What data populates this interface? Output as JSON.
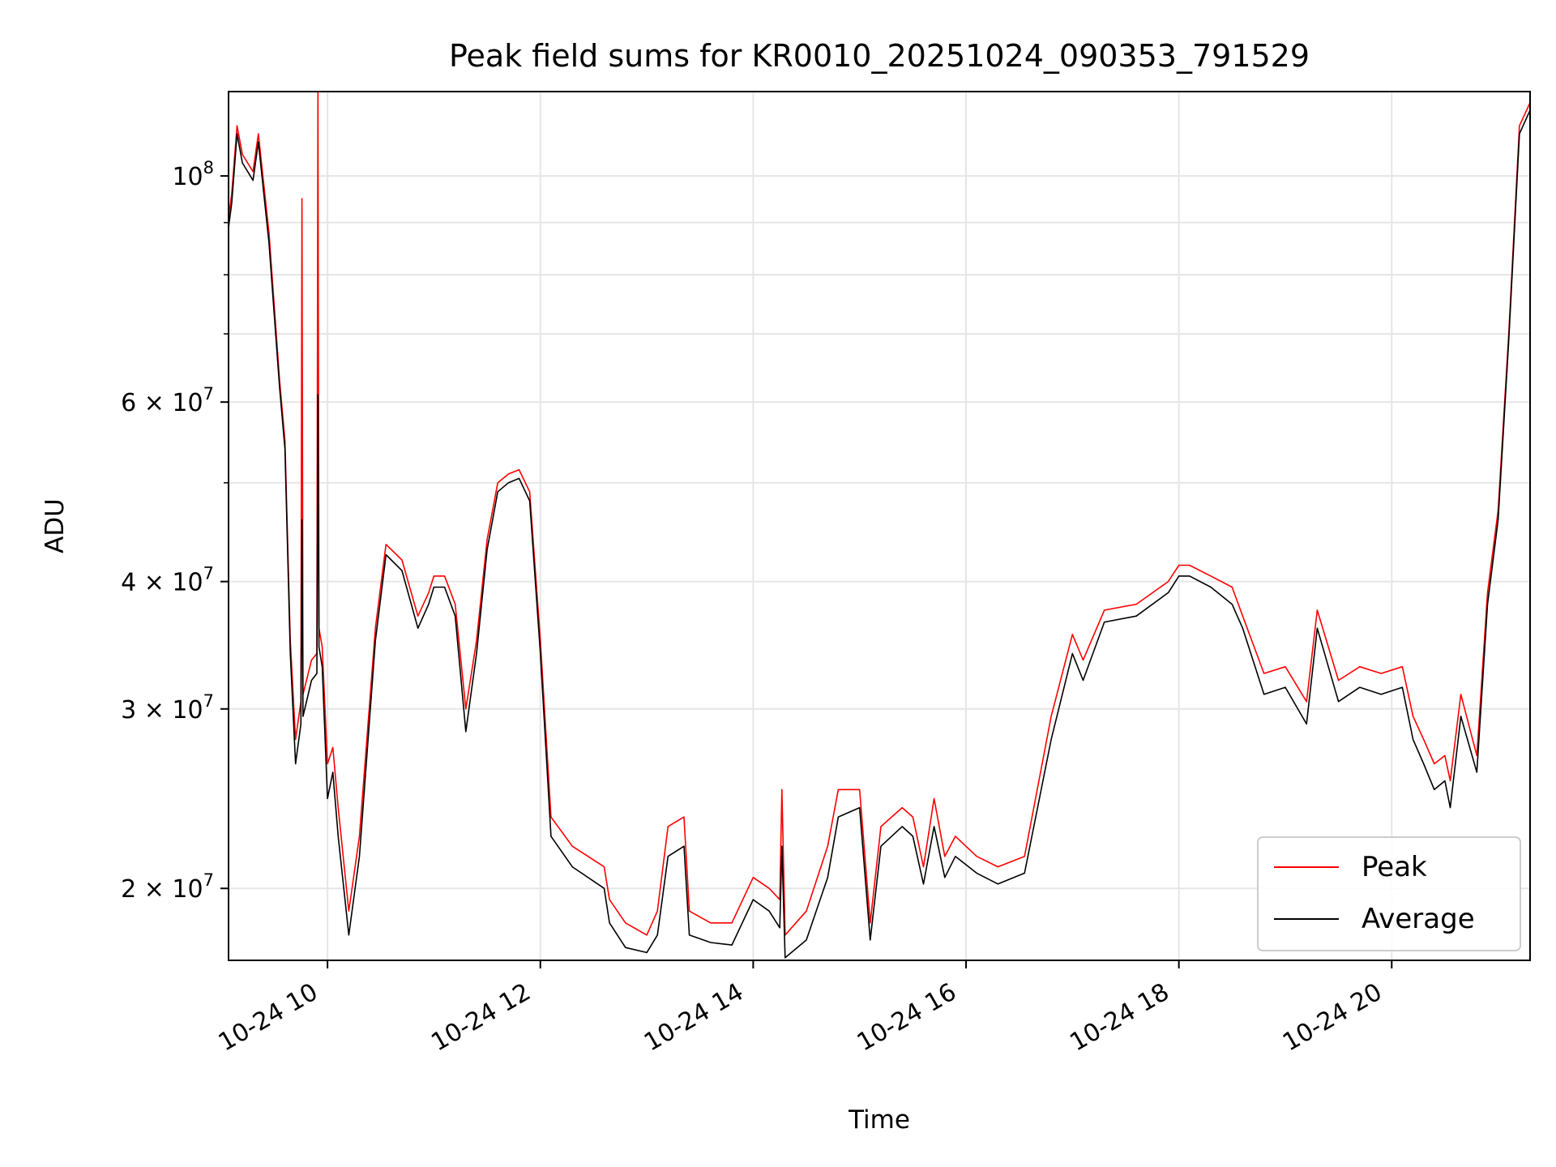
{
  "chart_data": {
    "type": "line",
    "title": "Peak field sums for KR0010_20251024_090353_791529",
    "xlabel": "Time",
    "ylabel": "ADU",
    "yscale": "log",
    "xlim": [
      9.07,
      21.3
    ],
    "ylim": [
      17000000,
      121000000
    ],
    "grid": true,
    "legend_position": "lower right",
    "x_ticks": [
      {
        "value": 10,
        "label": "10-24 10"
      },
      {
        "value": 12,
        "label": "10-24 12"
      },
      {
        "value": 14,
        "label": "10-24 14"
      },
      {
        "value": 16,
        "label": "10-24 16"
      },
      {
        "value": 18,
        "label": "10-24 18"
      },
      {
        "value": 20,
        "label": "10-24 20"
      }
    ],
    "y_major_ticks": [
      {
        "value": 100000000,
        "base": "10",
        "exp": "8"
      },
      {
        "value": 60000000,
        "base": "6 × 10",
        "exp": "7"
      },
      {
        "value": 40000000,
        "base": "4 × 10",
        "exp": "7"
      },
      {
        "value": 30000000,
        "base": "3 × 10",
        "exp": "7"
      },
      {
        "value": 20000000,
        "base": "2 × 10",
        "exp": "7"
      }
    ],
    "y_minor_grid": [
      50000000,
      70000000,
      80000000,
      90000000
    ],
    "series": [
      {
        "name": "Peak",
        "color": "#ff0000",
        "x": [
          9.07,
          9.1,
          9.15,
          9.2,
          9.3,
          9.35,
          9.45,
          9.55,
          9.6,
          9.65,
          9.7,
          9.75,
          9.76,
          9.77,
          9.85,
          9.9,
          9.91,
          9.92,
          9.95,
          10.0,
          10.05,
          10.1,
          10.2,
          10.3,
          10.45,
          10.55,
          10.7,
          10.85,
          10.95,
          11.0,
          11.1,
          11.2,
          11.3,
          11.4,
          11.5,
          11.6,
          11.7,
          11.8,
          11.9,
          12.0,
          12.1,
          12.3,
          12.6,
          12.65,
          12.8,
          13.0,
          13.1,
          13.2,
          13.35,
          13.4,
          13.6,
          13.8,
          14.0,
          14.15,
          14.25,
          14.27,
          14.3,
          14.5,
          14.7,
          14.8,
          15.0,
          15.1,
          15.2,
          15.4,
          15.5,
          15.6,
          15.7,
          15.8,
          15.9,
          16.1,
          16.3,
          16.55,
          16.8,
          17.0,
          17.1,
          17.3,
          17.6,
          17.9,
          18.0,
          18.1,
          18.3,
          18.5,
          18.6,
          18.8,
          19.0,
          19.2,
          19.3,
          19.5,
          19.7,
          19.9,
          20.1,
          20.2,
          20.3,
          20.4,
          20.5,
          20.55,
          20.65,
          20.8,
          20.9,
          21.0,
          21.1,
          21.2,
          21.3
        ],
        "y": [
          91000000,
          96000000,
          112000000,
          105000000,
          101000000,
          110000000,
          88000000,
          63000000,
          55000000,
          35000000,
          28000000,
          30500000,
          95000000,
          31000000,
          33500000,
          34000000,
          121000000,
          36000000,
          34500000,
          26500000,
          27500000,
          24000000,
          19000000,
          22500000,
          36000000,
          43500000,
          42000000,
          37000000,
          39000000,
          40500000,
          40500000,
          38000000,
          30000000,
          35000000,
          44000000,
          50000000,
          51000000,
          51500000,
          49000000,
          35000000,
          23500000,
          22000000,
          21000000,
          19500000,
          18500000,
          18000000,
          19000000,
          23000000,
          23500000,
          19000000,
          18500000,
          18500000,
          20500000,
          20000000,
          19500000,
          25000000,
          18000000,
          19000000,
          22000000,
          25000000,
          25000000,
          18500000,
          23000000,
          24000000,
          23500000,
          21000000,
          24500000,
          21500000,
          22500000,
          21500000,
          21000000,
          21500000,
          29500000,
          35500000,
          33500000,
          37500000,
          38000000,
          40000000,
          41500000,
          41500000,
          40500000,
          39500000,
          37000000,
          32500000,
          33000000,
          30500000,
          37500000,
          32000000,
          33000000,
          32500000,
          33000000,
          29500000,
          28000000,
          26500000,
          27000000,
          25500000,
          31000000,
          27000000,
          39000000,
          47000000,
          70000000,
          112000000,
          118000000
        ]
      },
      {
        "name": "Average",
        "color": "#000000",
        "x": [
          9.07,
          9.1,
          9.15,
          9.2,
          9.3,
          9.35,
          9.45,
          9.55,
          9.6,
          9.65,
          9.7,
          9.75,
          9.76,
          9.77,
          9.85,
          9.9,
          9.91,
          9.92,
          9.95,
          10.0,
          10.05,
          10.1,
          10.2,
          10.3,
          10.45,
          10.55,
          10.7,
          10.85,
          10.95,
          11.0,
          11.1,
          11.2,
          11.3,
          11.4,
          11.5,
          11.6,
          11.7,
          11.8,
          11.9,
          12.0,
          12.1,
          12.3,
          12.6,
          12.65,
          12.8,
          13.0,
          13.1,
          13.2,
          13.35,
          13.4,
          13.6,
          13.8,
          14.0,
          14.15,
          14.25,
          14.27,
          14.3,
          14.5,
          14.7,
          14.8,
          15.0,
          15.1,
          15.2,
          15.4,
          15.5,
          15.6,
          15.7,
          15.8,
          15.9,
          16.1,
          16.3,
          16.55,
          16.8,
          17.0,
          17.1,
          17.3,
          17.6,
          17.9,
          18.0,
          18.1,
          18.3,
          18.5,
          18.6,
          18.8,
          19.0,
          19.2,
          19.3,
          19.5,
          19.7,
          19.9,
          20.1,
          20.2,
          20.3,
          20.4,
          20.5,
          20.55,
          20.65,
          20.8,
          20.9,
          21.0,
          21.1,
          21.2,
          21.3
        ],
        "y": [
          89000000,
          94000000,
          110000000,
          103000000,
          99000000,
          108000000,
          86000000,
          62000000,
          54000000,
          34000000,
          26500000,
          29000000,
          46000000,
          29500000,
          32000000,
          32500000,
          61000000,
          34500000,
          33000000,
          24500000,
          26000000,
          22500000,
          18000000,
          21500000,
          35000000,
          42500000,
          41000000,
          36000000,
          38000000,
          39500000,
          39500000,
          37000000,
          28500000,
          34000000,
          43000000,
          49000000,
          50000000,
          50500000,
          48000000,
          34000000,
          22500000,
          21000000,
          20000000,
          18500000,
          17500000,
          17300000,
          18000000,
          21500000,
          22000000,
          18000000,
          17700000,
          17600000,
          19500000,
          19000000,
          18300000,
          22000000,
          17100000,
          17800000,
          20500000,
          23500000,
          24000000,
          17800000,
          22000000,
          23000000,
          22500000,
          20200000,
          23000000,
          20500000,
          21500000,
          20700000,
          20200000,
          20700000,
          28000000,
          34000000,
          32000000,
          36500000,
          37000000,
          39000000,
          40500000,
          40500000,
          39500000,
          38000000,
          36000000,
          31000000,
          31500000,
          29000000,
          36000000,
          30500000,
          31500000,
          31000000,
          31500000,
          28000000,
          26500000,
          25000000,
          25500000,
          24000000,
          29500000,
          26000000,
          38000000,
          46000000,
          69000000,
          110000000,
          116000000
        ]
      }
    ]
  }
}
